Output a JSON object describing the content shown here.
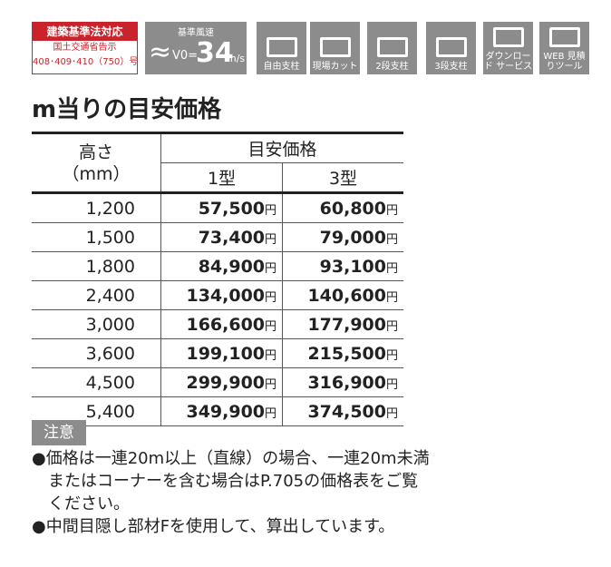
{
  "badges": {
    "law": {
      "title": "建築基準法対応",
      "line1": "国土交通省告示",
      "line2": "408･409･410（750）号"
    },
    "wind": {
      "label": "基準風速",
      "v": "V0=",
      "value": "34",
      "unit": "m/s"
    },
    "icons": [
      {
        "label": "自由支柱"
      },
      {
        "label": "現場カット"
      },
      {
        "label": "2段支柱"
      },
      {
        "label": "3段支柱"
      },
      {
        "label": "ダウンロード サービス"
      },
      {
        "label": "WEB 見積りツール"
      }
    ]
  },
  "title": "m当りの目安価格",
  "table": {
    "header": {
      "height": "高さ",
      "height_unit": "（mm）",
      "price": "目安価格",
      "type1": "1型",
      "type3": "3型"
    },
    "unit": "円",
    "rows": [
      [
        "1,200",
        "57,500",
        "60,800"
      ],
      [
        "1,500",
        "73,400",
        "79,000"
      ],
      [
        "1,800",
        "84,900",
        "93,100"
      ],
      [
        "2,400",
        "134,000",
        "140,600"
      ],
      [
        "3,000",
        "166,600",
        "177,900"
      ],
      [
        "3,600",
        "199,100",
        "215,500"
      ],
      [
        "4,500",
        "299,900",
        "316,900"
      ],
      [
        "5,400",
        "349,900",
        "374,500"
      ]
    ]
  },
  "notes": {
    "title": "注意",
    "items": [
      "●価格は一連20m以上（直線）の場合、一連20m未満またはコーナーを含む場合はP.705の価格表をご覧ください。",
      "●中間目隠し部材Fを使用して、算出しています。"
    ]
  }
}
